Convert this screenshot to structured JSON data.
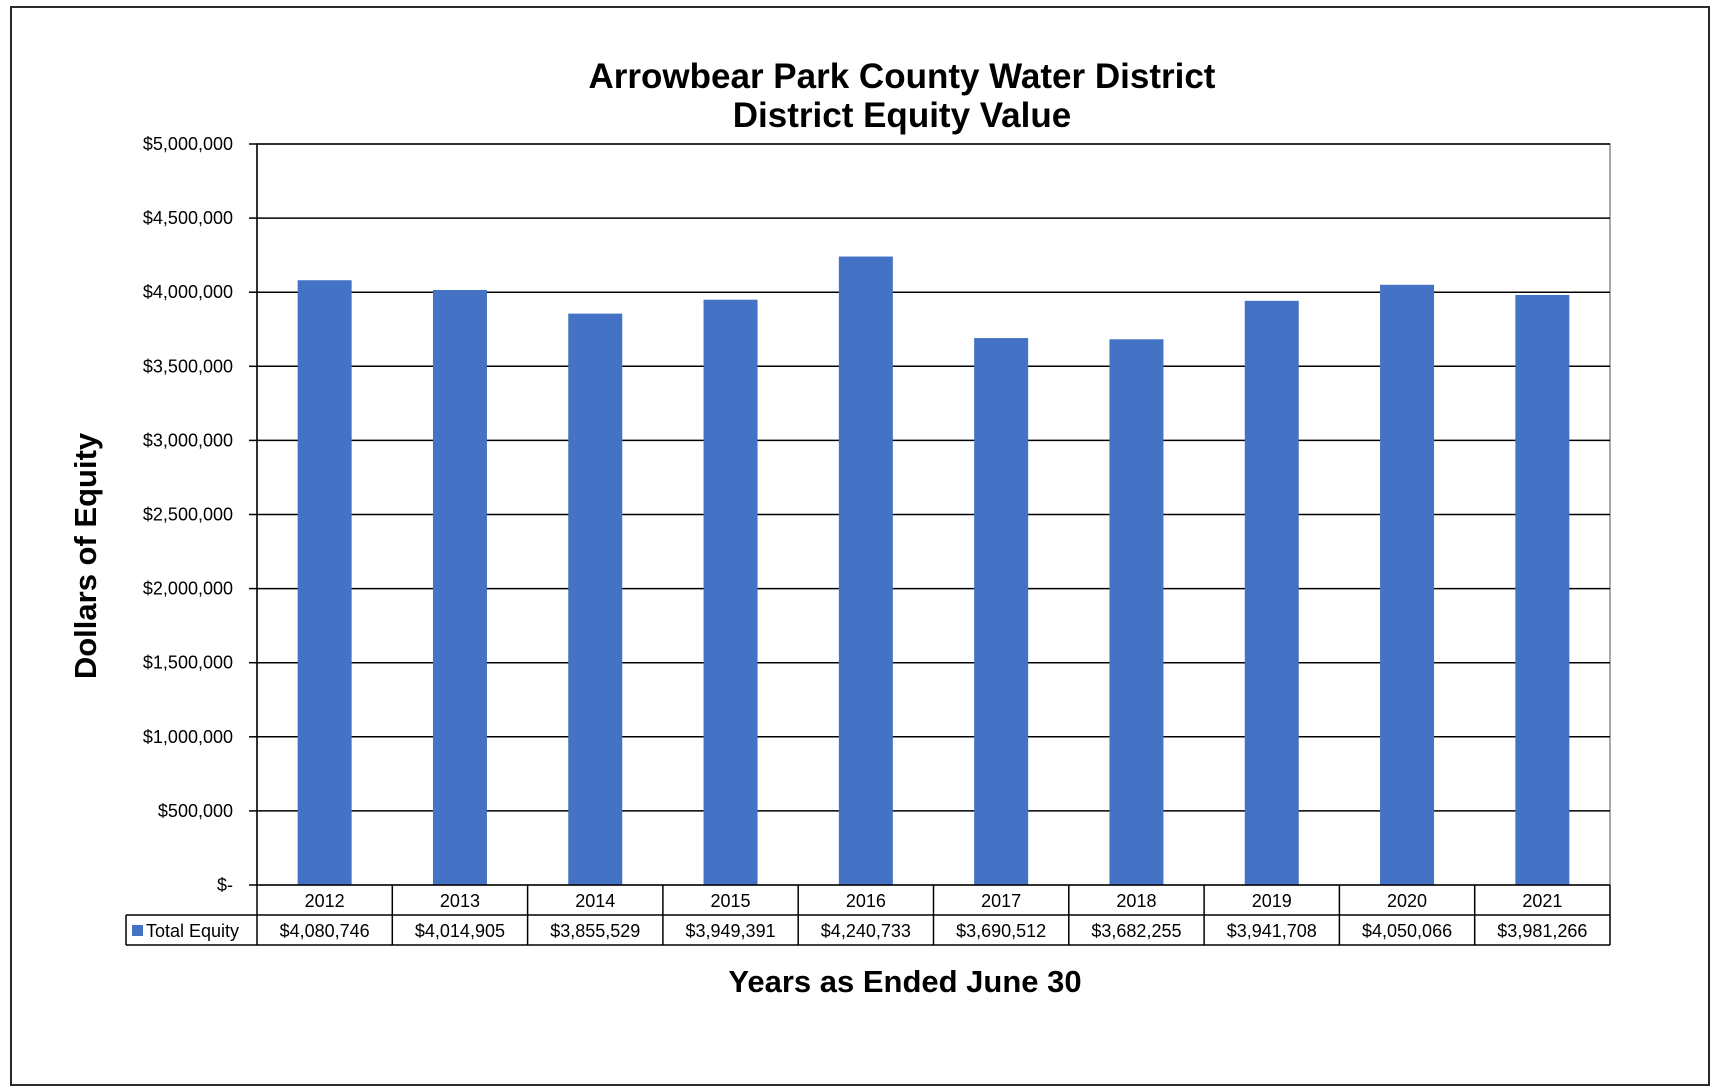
{
  "chart_data": {
    "type": "bar",
    "title": [
      "Arrowbear Park County Water District",
      "District Equity Value"
    ],
    "xlabel": "Years as Ended June 30",
    "ylabel": "Dollars of Equity",
    "ylim": [
      0,
      5000000
    ],
    "yticks": [
      0,
      500000,
      1000000,
      1500000,
      2000000,
      2500000,
      3000000,
      3500000,
      4000000,
      4500000,
      5000000
    ],
    "ytick_labels": [
      "$-",
      "$500,000",
      "$1,000,000",
      "$1,500,000",
      "$2,000,000",
      "$2,500,000",
      "$3,000,000",
      "$3,500,000",
      "$4,000,000",
      "$4,500,000",
      "$5,000,000"
    ],
    "grid": true,
    "categories": [
      "2012",
      "2013",
      "2014",
      "2015",
      "2016",
      "2017",
      "2018",
      "2019",
      "2020",
      "2021"
    ],
    "series": [
      {
        "name": "Total Equity",
        "color": "#4472c4",
        "values": [
          4080746,
          4014905,
          3855529,
          3949391,
          4240733,
          3690512,
          3682255,
          3941708,
          4050066,
          3981266
        ],
        "value_labels": [
          "$4,080,746",
          "$4,014,905",
          "$3,855,529",
          "$3,949,391",
          "$4,240,733",
          "$3,690,512",
          "$3,682,255",
          "$3,941,708",
          "$4,050,066",
          "$3,981,266"
        ]
      }
    ],
    "data_table": true
  }
}
